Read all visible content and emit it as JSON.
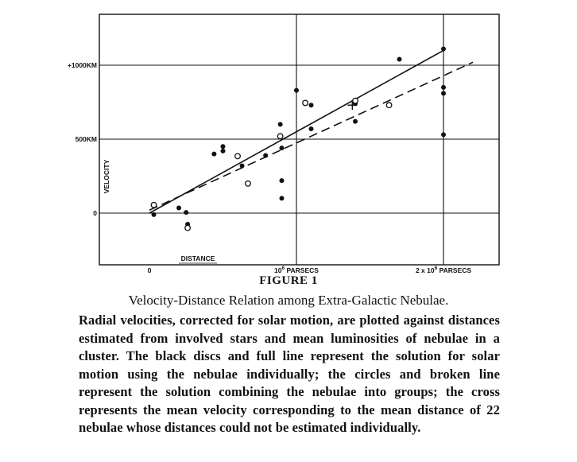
{
  "chart_data": {
    "type": "scatter",
    "title": "",
    "xlabel": "DISTANCE",
    "ylabel": "VELOCITY",
    "xlim": [
      -0.35,
      2.35
    ],
    "ylim": [
      -350,
      1350
    ],
    "x_ticks": [
      {
        "value": 0,
        "label": "0"
      },
      {
        "value": 1,
        "label": "10^6 PARSECS"
      },
      {
        "value": 2,
        "label": "2 x 10^6 PARSECS"
      }
    ],
    "y_ticks": [
      {
        "value": 0,
        "label": "0"
      },
      {
        "value": 500,
        "label": "500KM"
      },
      {
        "value": 1000,
        "label": "+1000KM"
      }
    ],
    "grid": true,
    "series": [
      {
        "marker": "filled",
        "points": [
          [
            0.03,
            -10
          ],
          [
            0.2,
            35
          ],
          [
            0.25,
            5
          ],
          [
            0.26,
            -75
          ],
          [
            0.44,
            400
          ],
          [
            0.5,
            420
          ],
          [
            0.5,
            450
          ],
          [
            0.63,
            320
          ],
          [
            0.79,
            390
          ],
          [
            0.89,
            600
          ],
          [
            0.9,
            440
          ],
          [
            0.9,
            220
          ],
          [
            0.9,
            100
          ],
          [
            1.0,
            830
          ],
          [
            1.1,
            730
          ],
          [
            1.1,
            570
          ],
          [
            1.4,
            620
          ],
          [
            1.4,
            740
          ],
          [
            1.7,
            1040
          ],
          [
            2.0,
            1110
          ],
          [
            2.0,
            850
          ],
          [
            2.0,
            810
          ],
          [
            2.0,
            530
          ]
        ]
      },
      {
        "marker": "open",
        "points": [
          [
            0.03,
            55
          ],
          [
            0.26,
            -100
          ],
          [
            0.6,
            385
          ],
          [
            0.67,
            200
          ],
          [
            0.89,
            520
          ],
          [
            1.06,
            745
          ],
          [
            1.4,
            760
          ],
          [
            1.63,
            730
          ]
        ]
      },
      {
        "marker": "cross",
        "points": [
          [
            1.38,
            730
          ]
        ]
      }
    ],
    "lines": [
      {
        "style": "solid",
        "from": [
          0.0,
          0
        ],
        "to": [
          2.0,
          1100
        ]
      },
      {
        "style": "dashed",
        "from": [
          0.0,
          20
        ],
        "to": [
          2.2,
          1020
        ]
      }
    ]
  },
  "figure_label": "FIGURE 1",
  "caption": "Velocity-Distance Relation among Extra-Galactic Nebulae.",
  "body_text": "Radial velocities, corrected for solar motion, are plotted against distances estimated from involved stars and mean luminosities of nebulae in a cluster. The black discs and full line represent the solution for solar motion using the nebulae individually; the circles and broken line represent the solution combining the nebulae into groups; the cross represents the mean velocity corresponding to the mean distance of 22 nebulae whose distances could not be estimated individually."
}
